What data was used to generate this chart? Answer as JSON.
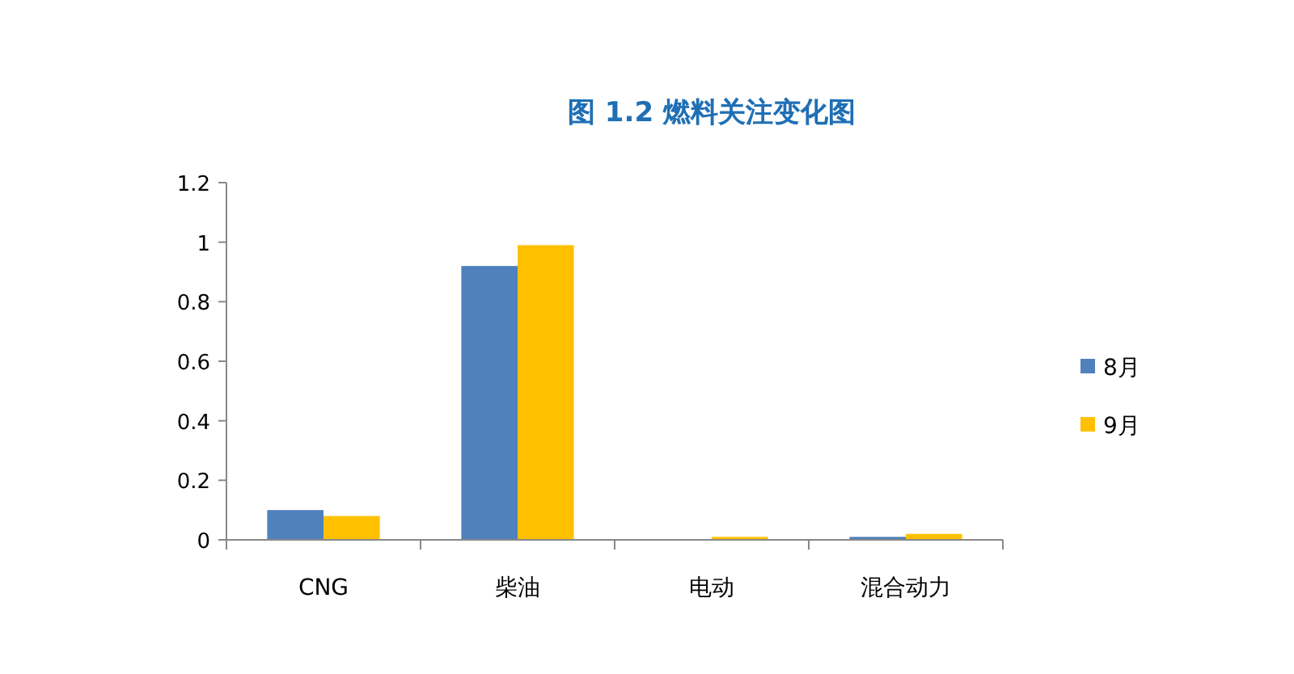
{
  "chart_data": {
    "type": "bar",
    "title": "图 1.2 燃料关注变化图",
    "categories": [
      "CNG",
      "柴油",
      "电动",
      "混合动力"
    ],
    "series": [
      {
        "name": "8月",
        "color": "#4f81bd",
        "values": [
          0.1,
          0.92,
          0,
          0.01
        ]
      },
      {
        "name": "9月",
        "color": "#ffc000",
        "values": [
          0.08,
          0.99,
          0.01,
          0.02
        ]
      }
    ],
    "ylim": [
      0,
      1.2
    ],
    "yticks": [
      0,
      0.2,
      0.4,
      0.6,
      0.8,
      1,
      1.2
    ],
    "grid": false,
    "legend": "right"
  }
}
